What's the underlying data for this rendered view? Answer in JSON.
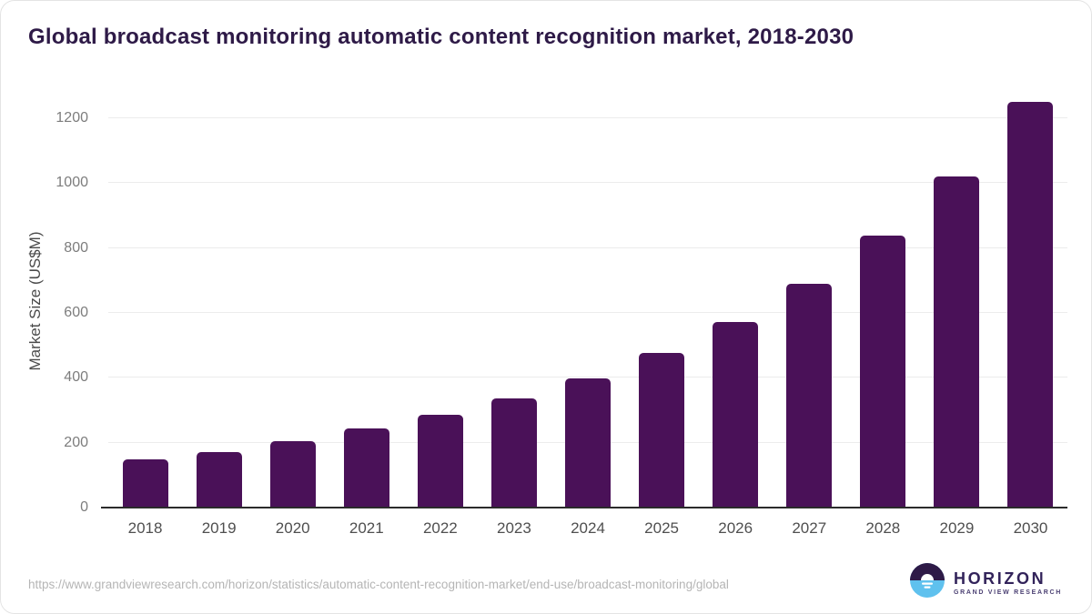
{
  "chart_data": {
    "type": "bar",
    "title": "Global broadcast monitoring automatic content recognition market, 2018-2030",
    "xlabel": "",
    "ylabel": "Market Size (US$M)",
    "categories": [
      "2018",
      "2019",
      "2020",
      "2021",
      "2022",
      "2023",
      "2024",
      "2025",
      "2026",
      "2027",
      "2028",
      "2029",
      "2030"
    ],
    "values": [
      145,
      169,
      202,
      240,
      283,
      333,
      395,
      473,
      569,
      686,
      836,
      1019,
      1248
    ],
    "yticks": [
      0,
      200,
      400,
      600,
      800,
      1000,
      1200
    ],
    "ylim": [
      0,
      1270
    ],
    "grid": true,
    "legend": "none",
    "bar_color": "#4a1158"
  },
  "colors": {
    "title": "#2e1a47",
    "bar": "#4a1158",
    "gridline": "#ececec",
    "axis_line": "#2b2b2b",
    "y_tick_text": "#7d7d7d",
    "x_tick_text": "#4f4f4f",
    "url_text": "#b5b5b5",
    "logo_dark_purple": "#2e1a47",
    "logo_light_blue": "#5fc1ee"
  },
  "footer": {
    "source_url": "https://www.grandviewresearch.com/horizon/statistics/automatic-content-recognition-market/end-use/broadcast-monitoring/global",
    "logo": {
      "title": "HORIZON",
      "subtitle": "GRAND VIEW RESEARCH"
    }
  }
}
